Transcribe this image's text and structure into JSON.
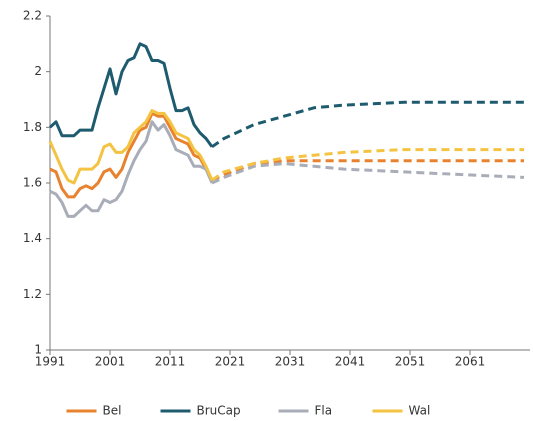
{
  "chart_data": {
    "type": "line",
    "x": [
      1991,
      1992,
      1993,
      1994,
      1995,
      1996,
      1997,
      1998,
      1999,
      2000,
      2001,
      2002,
      2003,
      2004,
      2005,
      2006,
      2007,
      2008,
      2009,
      2010,
      2011,
      2012,
      2013,
      2014,
      2015,
      2016,
      2017,
      2018,
      2020,
      2025,
      2030,
      2035,
      2040,
      2050,
      2060,
      2070
    ],
    "dashed_from": 2018,
    "series": [
      {
        "name": "Bel",
        "color": "#e8822e",
        "values": [
          1.65,
          1.64,
          1.58,
          1.55,
          1.55,
          1.58,
          1.59,
          1.58,
          1.6,
          1.64,
          1.65,
          1.62,
          1.65,
          1.71,
          1.75,
          1.79,
          1.8,
          1.85,
          1.84,
          1.84,
          1.8,
          1.76,
          1.75,
          1.74,
          1.7,
          1.69,
          1.65,
          1.61,
          1.63,
          1.67,
          1.68,
          1.68,
          1.68,
          1.68,
          1.68,
          1.68
        ]
      },
      {
        "name": "BruCap",
        "color": "#1f5b6e",
        "values": [
          1.8,
          1.82,
          1.77,
          1.77,
          1.77,
          1.79,
          1.79,
          1.79,
          1.87,
          1.94,
          2.01,
          1.92,
          2.0,
          2.04,
          2.05,
          2.1,
          2.09,
          2.04,
          2.04,
          2.03,
          1.94,
          1.86,
          1.86,
          1.87,
          1.81,
          1.78,
          1.76,
          1.73,
          1.76,
          1.81,
          1.84,
          1.87,
          1.88,
          1.89,
          1.89,
          1.89
        ]
      },
      {
        "name": "Fla",
        "color": "#a8adb8",
        "values": [
          1.57,
          1.56,
          1.53,
          1.48,
          1.48,
          1.5,
          1.52,
          1.5,
          1.5,
          1.54,
          1.53,
          1.54,
          1.57,
          1.63,
          1.68,
          1.72,
          1.75,
          1.82,
          1.79,
          1.81,
          1.77,
          1.72,
          1.71,
          1.7,
          1.66,
          1.66,
          1.65,
          1.6,
          1.62,
          1.66,
          1.67,
          1.66,
          1.65,
          1.64,
          1.63,
          1.62
        ]
      },
      {
        "name": "Wal",
        "color": "#f5c342",
        "values": [
          1.75,
          1.7,
          1.65,
          1.61,
          1.6,
          1.65,
          1.65,
          1.65,
          1.67,
          1.73,
          1.74,
          1.71,
          1.71,
          1.73,
          1.78,
          1.8,
          1.82,
          1.86,
          1.85,
          1.85,
          1.82,
          1.78,
          1.77,
          1.76,
          1.72,
          1.7,
          1.66,
          1.61,
          1.64,
          1.67,
          1.69,
          1.7,
          1.71,
          1.72,
          1.72,
          1.72
        ]
      }
    ],
    "xlim": [
      1991,
      2071
    ],
    "xticks": [
      1991,
      2001,
      2011,
      2021,
      2031,
      2041,
      2051,
      2061
    ],
    "ylim": [
      1,
      2.2
    ],
    "yticks": [
      1,
      1.2,
      1.4,
      1.6,
      1.8,
      2,
      2.2
    ],
    "legend": "bottom"
  }
}
